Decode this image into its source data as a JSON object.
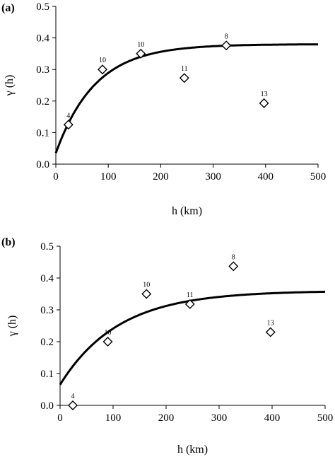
{
  "chart_data": [
    {
      "type": "scatter",
      "panel_label": "(a)",
      "xlabel": "h (km)",
      "ylabel": "γ (h)",
      "xlim": [
        0,
        500
      ],
      "ylim": [
        0,
        0.5
      ],
      "x_ticks": [
        "0",
        "100",
        "200",
        "300",
        "400",
        "500"
      ],
      "y_ticks": [
        "0.0",
        "0.1",
        "0.2",
        "0.3",
        "0.4",
        "0.5"
      ],
      "grid": false,
      "points": [
        {
          "x": 24,
          "y": 0.125,
          "label": "4"
        },
        {
          "x": 89,
          "y": 0.3,
          "label": "10"
        },
        {
          "x": 162,
          "y": 0.35,
          "label": "10"
        },
        {
          "x": 245,
          "y": 0.273,
          "label": "11"
        },
        {
          "x": 325,
          "y": 0.376,
          "label": "8"
        },
        {
          "x": 397,
          "y": 0.193,
          "label": "13"
        }
      ],
      "fit_curve": {
        "nugget": 0.035,
        "sill": 0.38,
        "range": 75
      }
    },
    {
      "type": "scatter",
      "panel_label": "(b)",
      "xlabel": "h (km)",
      "ylabel": "γ (h)",
      "xlim": [
        0,
        500
      ],
      "ylim": [
        0,
        0.5
      ],
      "x_ticks": [
        "0",
        "100",
        "200",
        "300",
        "400",
        "500"
      ],
      "y_ticks": [
        "0.0",
        "0.1",
        "0.2",
        "0.3",
        "0.4",
        "0.5"
      ],
      "grid": false,
      "points": [
        {
          "x": 24,
          "y": 0.0,
          "label": "4"
        },
        {
          "x": 90,
          "y": 0.2,
          "label": "10"
        },
        {
          "x": 163,
          "y": 0.35,
          "label": "10"
        },
        {
          "x": 245,
          "y": 0.318,
          "label": "11"
        },
        {
          "x": 327,
          "y": 0.437,
          "label": "8"
        },
        {
          "x": 397,
          "y": 0.23,
          "label": "13"
        }
      ],
      "fit_curve": {
        "nugget": 0.065,
        "sill": 0.36,
        "range": 110
      }
    }
  ]
}
